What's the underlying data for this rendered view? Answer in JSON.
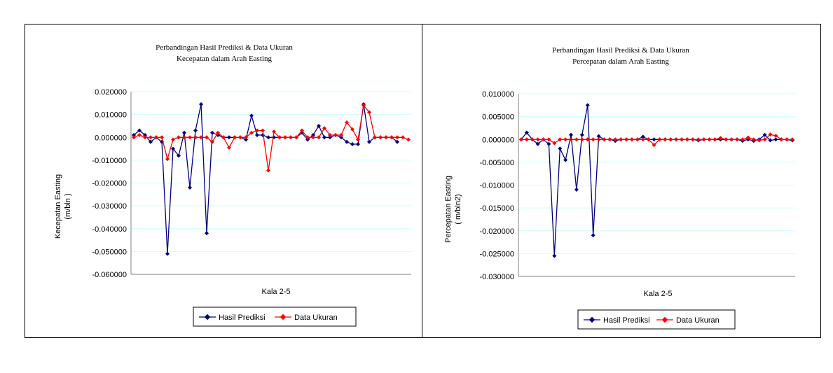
{
  "colors": {
    "prediction": "#000080",
    "measured": "#ff0000",
    "grid": "#ccffff"
  },
  "chart_data": [
    {
      "type": "line",
      "title": "Perbandingan Hasil Prediksi & Data Ukuran",
      "subtitle": "Kecepatan dalam Arah Easting",
      "xlabel": "Kala 2-5",
      "ylabel": "Kecepatan  Easting",
      "ylabel_unit": "(m/bln )",
      "ylim": [
        -0.06,
        0.02
      ],
      "yticks": [
        "0.020000",
        "0.010000",
        "0.000000",
        "-0.010000",
        "-0.020000",
        "-0.030000",
        "-0.040000",
        "-0.050000",
        "-0.060000"
      ],
      "grid": true,
      "legend_position": "bottom",
      "x": [
        1,
        2,
        3,
        4,
        5,
        6,
        7,
        8,
        9,
        10,
        11,
        12,
        13,
        14,
        15,
        16,
        17,
        18,
        19,
        20,
        21,
        22,
        23,
        24,
        25,
        26,
        27,
        28,
        29,
        30,
        31,
        32,
        33,
        34,
        35,
        36,
        37,
        38,
        39,
        40,
        41,
        42,
        43,
        44,
        45,
        46,
        47,
        48,
        49,
        50
      ],
      "series": [
        {
          "name": "Hasil Prediksi",
          "color": "#000080",
          "values": [
            0.001,
            0.003,
            0.001,
            -0.002,
            0.0,
            -0.002,
            -0.051,
            -0.005,
            -0.008,
            0.002,
            -0.022,
            0.003,
            0.0145,
            -0.042,
            0.002,
            0.001,
            0.0,
            0.0,
            0.0,
            0.0,
            -0.001,
            0.0095,
            0.001,
            0.001,
            0.0,
            0.0,
            0.0,
            0.0,
            0.0,
            0.0,
            0.002,
            -0.001,
            0.001,
            0.005,
            0.0,
            0.0,
            0.001,
            0.0,
            -0.002,
            -0.003,
            -0.003,
            0.0145,
            -0.002,
            0.0,
            0.0,
            0.0,
            0.0,
            -0.002,
            null,
            null
          ]
        },
        {
          "name": "Data Ukuran",
          "color": "#ff0000",
          "values": [
            0.0,
            0.001,
            0.0,
            0.0,
            0.0,
            0.0,
            -0.0095,
            -0.001,
            0.0,
            0.0,
            0.0,
            0.0,
            0.0,
            0.0,
            -0.002,
            0.002,
            0.0,
            -0.0045,
            0.0,
            0.0,
            0.0,
            0.002,
            0.003,
            0.003,
            -0.0145,
            0.0025,
            0.0,
            0.0,
            0.0,
            0.0,
            0.003,
            0.0,
            0.0,
            0.0,
            0.004,
            0.001,
            0.001,
            0.001,
            0.0065,
            0.0035,
            -0.001,
            0.014,
            0.011,
            0.0,
            0.0,
            0.0,
            0.0,
            0.0,
            0.0,
            -0.001
          ]
        }
      ]
    },
    {
      "type": "line",
      "title": "Perbandingan Hasil Prediksi & Data Ukuran",
      "subtitle": "Percepatan dalam Arah Easting",
      "xlabel": "Kala 2-5",
      "ylabel": "Percepatan Easting",
      "ylabel_unit": "( m/bln2)",
      "ylim": [
        -0.03,
        0.01
      ],
      "yticks": [
        "0.010000",
        "0.005000",
        "0.000000",
        "-0.005000",
        "-0.010000",
        "-0.015000",
        "-0.020000",
        "-0.025000",
        "-0.030000"
      ],
      "grid": true,
      "legend_position": "bottom",
      "x": [
        1,
        2,
        3,
        4,
        5,
        6,
        7,
        8,
        9,
        10,
        11,
        12,
        13,
        14,
        15,
        16,
        17,
        18,
        19,
        20,
        21,
        22,
        23,
        24,
        25,
        26,
        27,
        28,
        29,
        30,
        31,
        32,
        33,
        34,
        35,
        36,
        37,
        38,
        39,
        40,
        41,
        42,
        43,
        44,
        45,
        46,
        47,
        48,
        49,
        50
      ],
      "series": [
        {
          "name": "Hasil Prediksi",
          "color": "#000080",
          "values": [
            0.0,
            0.0015,
            0.0,
            -0.001,
            0.0,
            -0.001,
            -0.0255,
            -0.002,
            -0.0045,
            0.001,
            -0.011,
            0.001,
            0.0075,
            -0.021,
            0.0007,
            0.0,
            0.0,
            -0.0003,
            0.0,
            0.0,
            0.0,
            0.0,
            0.0006,
            0.0,
            0.0,
            0.0,
            0.0,
            0.0,
            0.0,
            0.0,
            0.0,
            0.0,
            -0.0002,
            0.0,
            0.0,
            0.0,
            0.0,
            0.0,
            0.0,
            0.0,
            -0.0003,
            0.0,
            -0.0003,
            0.0,
            0.001,
            -0.0002,
            0.0,
            0.0,
            0.0,
            -0.0002
          ]
        },
        {
          "name": "Data Ukuran",
          "color": "#ff0000",
          "values": [
            0.0,
            0.0,
            0.0,
            0.0,
            0.0,
            0.0,
            -0.0008,
            0.0,
            0.0,
            0.0,
            0.0,
            0.0,
            0.0,
            0.0,
            0.0,
            0.0,
            0.0,
            0.0,
            0.0,
            0.0,
            0.0,
            0.0,
            0.0,
            0.0,
            -0.0012,
            0.0,
            0.0,
            0.0,
            0.0,
            0.0,
            0.0,
            0.0,
            0.0,
            0.0,
            0.0,
            0.0,
            0.0003,
            0.0,
            0.0,
            0.0,
            0.0,
            0.0004,
            0.0,
            -0.0002,
            0.0,
            0.0011,
            0.0008,
            0.0,
            0.0,
            0.0
          ]
        }
      ]
    }
  ]
}
